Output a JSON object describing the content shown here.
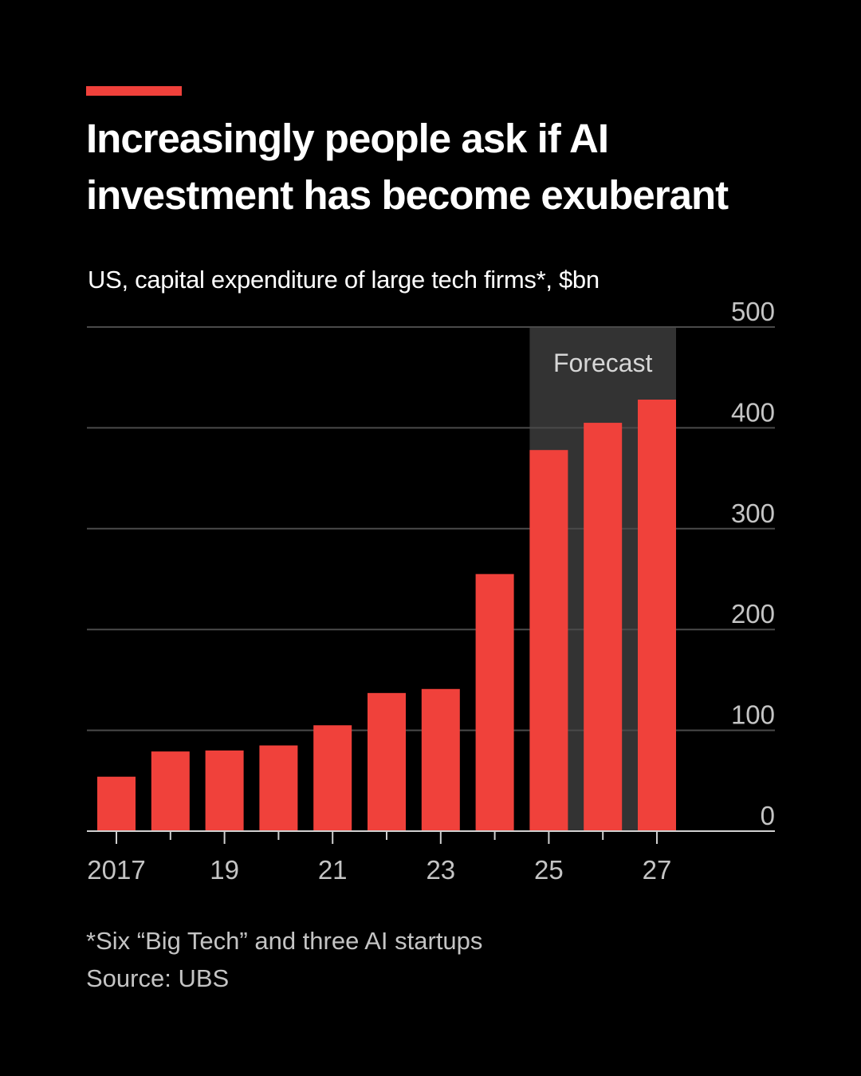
{
  "header": {
    "title": "Increasingly people ask if AI investment has become exuberant",
    "subtitle": "US, capital expenditure of large tech firms*, $bn"
  },
  "footer": {
    "footnote": "*Six “Big Tech” and three AI startups",
    "source": "Source: UBS"
  },
  "colors": {
    "background": "#000000",
    "accent": "#f0413b",
    "bar": "#f0413b",
    "forecast_band": "#333333",
    "gridline": "#4a4a4a",
    "axis_text": "#c4c4c4"
  },
  "chart_data": {
    "type": "bar",
    "title": "Increasingly people ask if AI investment has become exuberant",
    "subtitle": "US, capital expenditure of large tech firms*, $bn",
    "categories": [
      "2017",
      "2018",
      "2019",
      "2020",
      "2021",
      "2022",
      "2023",
      "2024",
      "2025",
      "2026",
      "2027"
    ],
    "values": [
      54,
      79,
      80,
      85,
      105,
      137,
      141,
      255,
      378,
      405,
      428
    ],
    "x_tick_labels": [
      {
        "category": "2017",
        "label": "2017"
      },
      {
        "category": "2019",
        "label": "19"
      },
      {
        "category": "2021",
        "label": "21"
      },
      {
        "category": "2023",
        "label": "23"
      },
      {
        "category": "2025",
        "label": "25"
      },
      {
        "category": "2027",
        "label": "27"
      }
    ],
    "y_ticks": [
      0,
      100,
      200,
      300,
      400,
      500
    ],
    "ylim": [
      0,
      500
    ],
    "xlabel": "",
    "ylabel": "",
    "y_axis_side": "right",
    "grid": true,
    "forecast": {
      "label": "Forecast",
      "from": "2025",
      "to": "2027"
    }
  }
}
